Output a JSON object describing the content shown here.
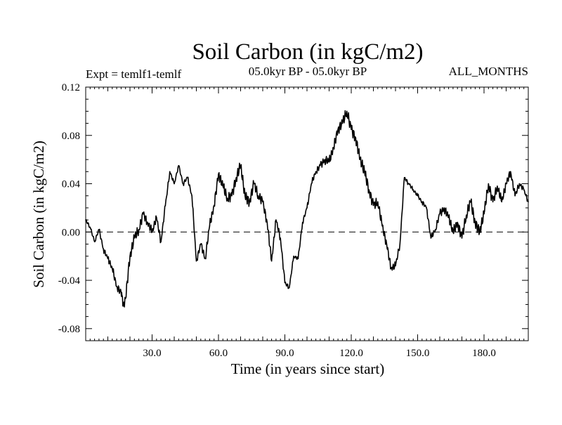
{
  "chart_data": {
    "type": "line",
    "title": "Soil Carbon (in kgC/m2)",
    "subtitle_left": "Expt = temlf1-temlf",
    "subtitle_center": "05.0kyr BP - 05.0kyr BP",
    "subtitle_right": "ALL_MONTHS",
    "xlabel": "Time (in years since start)",
    "ylabel": "Soil Carbon (in kgC/m2)",
    "xlim": [
      0,
      200
    ],
    "ylim": [
      -0.09,
      0.12
    ],
    "xticks": [
      30,
      60,
      90,
      120,
      150,
      180
    ],
    "xtick_labels": [
      "30.0",
      "60.0",
      "90.0",
      "120.0",
      "150.0",
      "180.0"
    ],
    "yticks": [
      -0.08,
      -0.04,
      0.0,
      0.04,
      0.08,
      0.12
    ],
    "ytick_labels": [
      "-0.08",
      "-0.04",
      "0.00",
      "0.04",
      "0.08",
      "0.12"
    ],
    "reference_line": 0.0,
    "series": [
      {
        "name": "Soil Carbon",
        "color": "#000000",
        "x": [
          0,
          2,
          4,
          6,
          8,
          10,
          12,
          14,
          16,
          17,
          18,
          20,
          22,
          24,
          26,
          28,
          30,
          32,
          34,
          36,
          38,
          40,
          42,
          44,
          46,
          48,
          50,
          52,
          54,
          56,
          58,
          60,
          62,
          64,
          66,
          68,
          70,
          72,
          74,
          76,
          78,
          80,
          82,
          84,
          86,
          88,
          90,
          92,
          94,
          96,
          98,
          100,
          102,
          104,
          106,
          108,
          110,
          112,
          114,
          116,
          118,
          120,
          122,
          124,
          126,
          128,
          130,
          132,
          134,
          136,
          138,
          140,
          142,
          144,
          146,
          148,
          150,
          152,
          154,
          156,
          158,
          160,
          162,
          164,
          166,
          168,
          170,
          172,
          174,
          176,
          178,
          180,
          182,
          184,
          186,
          188,
          190,
          192,
          194,
          196,
          198,
          200
        ],
        "values": [
          0.01,
          0.004,
          -0.008,
          0.002,
          -0.014,
          -0.022,
          -0.03,
          -0.045,
          -0.05,
          -0.06,
          -0.055,
          -0.02,
          -0.005,
          0.002,
          0.015,
          0.008,
          0.0,
          0.012,
          -0.008,
          0.022,
          0.05,
          0.04,
          0.055,
          0.04,
          0.045,
          0.03,
          -0.024,
          -0.01,
          -0.022,
          0.005,
          0.022,
          0.048,
          0.038,
          0.028,
          0.03,
          0.045,
          0.055,
          0.03,
          0.025,
          0.04,
          0.03,
          0.025,
          0.008,
          -0.024,
          0.01,
          -0.005,
          -0.042,
          -0.046,
          -0.02,
          -0.022,
          0.008,
          0.02,
          0.04,
          0.05,
          0.055,
          0.06,
          0.058,
          0.07,
          0.085,
          0.09,
          0.1,
          0.085,
          0.078,
          0.06,
          0.05,
          0.035,
          0.022,
          0.025,
          0.005,
          -0.01,
          -0.03,
          -0.028,
          -0.01,
          0.045,
          0.04,
          0.035,
          0.03,
          0.025,
          0.02,
          -0.005,
          0.002,
          0.015,
          0.02,
          0.012,
          0.0,
          0.008,
          -0.005,
          0.014,
          0.025,
          0.008,
          0.0,
          0.015,
          0.04,
          0.025,
          0.038,
          0.025,
          0.04,
          0.05,
          0.03,
          0.04,
          0.035,
          0.025
        ]
      }
    ]
  }
}
